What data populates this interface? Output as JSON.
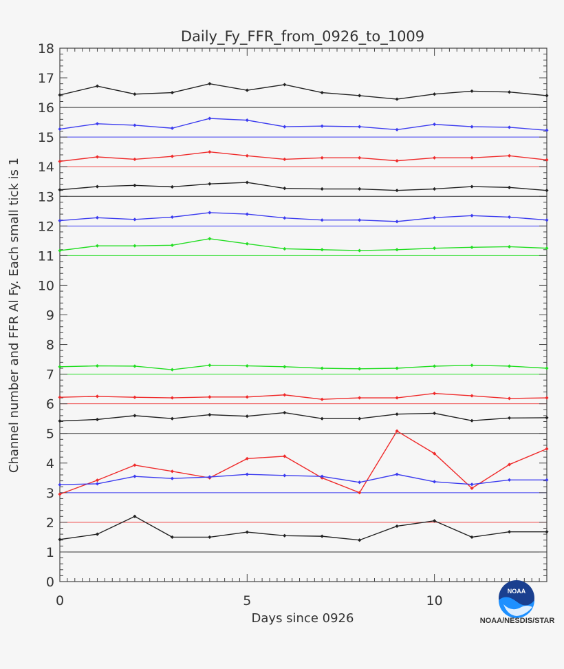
{
  "chart_data": {
    "type": "line",
    "title": "Daily_Fy_FFR_from_0926_to_1009",
    "xlabel": "Days since 0926",
    "ylabel": "Channel number and FFR Al Fy. Each small tick is 1",
    "xlim": [
      0,
      13
    ],
    "ylim": [
      0,
      18
    ],
    "xticks": [
      0,
      5,
      10
    ],
    "yticks": [
      0,
      1,
      2,
      3,
      4,
      5,
      6,
      7,
      8,
      9,
      10,
      11,
      12,
      13,
      14,
      15,
      16,
      17,
      18
    ],
    "x": [
      0,
      1,
      2,
      3,
      4,
      5,
      6,
      7,
      8,
      9,
      10,
      11,
      12,
      13
    ],
    "reference_lines": [
      {
        "y": 1,
        "color": "#333333"
      },
      {
        "y": 2,
        "color": "#ef4444"
      },
      {
        "y": 3,
        "color": "#3b3bef"
      },
      {
        "y": 5,
        "color": "#333333"
      },
      {
        "y": 6,
        "color": "#ef4444"
      },
      {
        "y": 7,
        "color": "#22dd22"
      },
      {
        "y": 11,
        "color": "#22dd22"
      },
      {
        "y": 12,
        "color": "#3b3bef"
      },
      {
        "y": 13,
        "color": "#333333"
      },
      {
        "y": 14,
        "color": "#ef4444"
      },
      {
        "y": 15,
        "color": "#3b3bef"
      },
      {
        "y": 16,
        "color": "#333333"
      }
    ],
    "series": [
      {
        "color": "#222222",
        "values": [
          1.42,
          1.6,
          2.2,
          1.5,
          1.5,
          1.67,
          1.55,
          1.53,
          1.4,
          1.87,
          2.05,
          1.5,
          1.68,
          1.68
        ]
      },
      {
        "color": "#ef2a2a",
        "values": [
          2.95,
          3.42,
          3.93,
          3.72,
          3.5,
          4.15,
          4.23,
          3.5,
          3.0,
          5.08,
          4.32,
          3.15,
          3.95,
          4.48
        ]
      },
      {
        "color": "#3b3bef",
        "values": [
          3.27,
          3.3,
          3.55,
          3.48,
          3.53,
          3.62,
          3.58,
          3.55,
          3.35,
          3.62,
          3.37,
          3.28,
          3.43,
          3.43
        ]
      },
      {
        "color": "#222222",
        "values": [
          5.42,
          5.47,
          5.6,
          5.5,
          5.63,
          5.58,
          5.7,
          5.5,
          5.5,
          5.65,
          5.68,
          5.43,
          5.52,
          5.53
        ]
      },
      {
        "color": "#ef2a2a",
        "values": [
          6.22,
          6.25,
          6.22,
          6.2,
          6.23,
          6.23,
          6.3,
          6.15,
          6.2,
          6.2,
          6.35,
          6.27,
          6.18,
          6.2
        ]
      },
      {
        "color": "#22dd22",
        "values": [
          7.25,
          7.28,
          7.27,
          7.15,
          7.3,
          7.28,
          7.25,
          7.2,
          7.18,
          7.2,
          7.27,
          7.3,
          7.27,
          7.2
        ]
      },
      {
        "color": "#22dd22",
        "values": [
          11.17,
          11.33,
          11.33,
          11.35,
          11.57,
          11.4,
          11.23,
          11.2,
          11.17,
          11.2,
          11.25,
          11.28,
          11.3,
          11.25
        ]
      },
      {
        "color": "#3b3bef",
        "values": [
          12.18,
          12.28,
          12.22,
          12.3,
          12.45,
          12.4,
          12.27,
          12.2,
          12.2,
          12.15,
          12.28,
          12.35,
          12.3,
          12.2
        ]
      },
      {
        "color": "#222222",
        "values": [
          13.22,
          13.33,
          13.37,
          13.32,
          13.42,
          13.47,
          13.27,
          13.25,
          13.25,
          13.2,
          13.25,
          13.33,
          13.3,
          13.2
        ]
      },
      {
        "color": "#ef2a2a",
        "values": [
          14.18,
          14.33,
          14.25,
          14.35,
          14.5,
          14.37,
          14.25,
          14.3,
          14.3,
          14.2,
          14.3,
          14.3,
          14.37,
          14.23
        ]
      },
      {
        "color": "#3b3bef",
        "values": [
          15.27,
          15.45,
          15.4,
          15.3,
          15.63,
          15.57,
          15.35,
          15.37,
          15.35,
          15.25,
          15.43,
          15.35,
          15.33,
          15.23
        ]
      },
      {
        "color": "#222222",
        "values": [
          16.42,
          16.72,
          16.45,
          16.5,
          16.8,
          16.58,
          16.77,
          16.5,
          16.4,
          16.28,
          16.45,
          16.55,
          16.52,
          16.4
        ]
      }
    ]
  },
  "logo": {
    "caption": "NOAA/NESDIS/STAR",
    "badge_text": "NOAA",
    "icon": "noaa-logo-icon"
  }
}
